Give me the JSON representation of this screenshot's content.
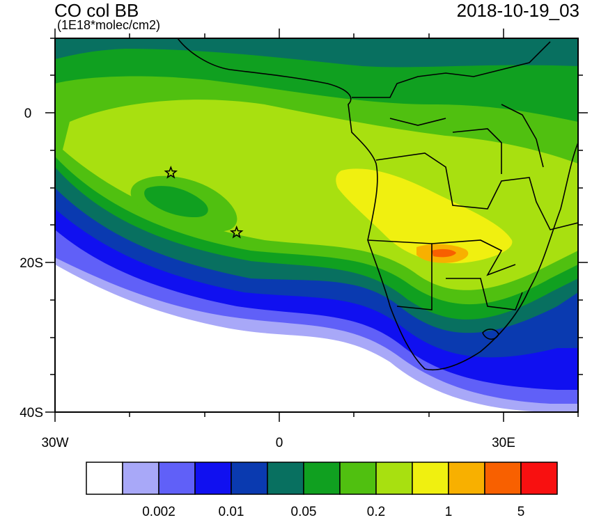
{
  "header": {
    "title": "CO col BB",
    "units": "(1E18*molec/cm2)",
    "datetime": "2018-10-19_03"
  },
  "map": {
    "lon_range": [
      -30,
      40
    ],
    "lat_range": [
      -40,
      10
    ],
    "x_ticks": [
      {
        "value": -30,
        "label": "30W"
      },
      {
        "value": 0,
        "label": "0"
      },
      {
        "value": 30,
        "label": "30E"
      }
    ],
    "y_ticks": [
      {
        "value": 0,
        "label": "0"
      },
      {
        "value": -20,
        "label": "20S"
      },
      {
        "value": -40,
        "label": "40S"
      }
    ],
    "markers": [
      {
        "name": "star-marker-1",
        "lon": -14.5,
        "lat": -8
      },
      {
        "name": "star-marker-2",
        "lon": -5.7,
        "lat": -16
      }
    ]
  },
  "colorbar": {
    "colors": [
      "#ffffff",
      "#a8a8f8",
      "#6060f8",
      "#1010f0",
      "#0a3ab0",
      "#087060",
      "#10a020",
      "#50c010",
      "#a8e010",
      "#f0f010",
      "#f8b000",
      "#f86000",
      "#f81010"
    ],
    "labels": [
      {
        "after_box": 2,
        "text": "0.002"
      },
      {
        "after_box": 4,
        "text": "0.01"
      },
      {
        "after_box": 6,
        "text": "0.05"
      },
      {
        "after_box": 8,
        "text": "0.2"
      },
      {
        "after_box": 10,
        "text": "1"
      },
      {
        "after_box": 12,
        "text": "5"
      }
    ]
  }
}
